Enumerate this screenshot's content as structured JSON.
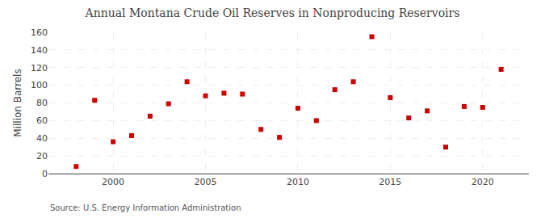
{
  "chart_data": {
    "type": "scatter",
    "title": "Annual Montana Crude Oil Reserves in Nonproducing Reservoirs",
    "ylabel": "Million Barrels",
    "source": "Source: U.S. Energy Information Administration",
    "x": [
      1998,
      1999,
      2000,
      2001,
      2002,
      2003,
      2004,
      2005,
      2006,
      2007,
      2008,
      2009,
      2010,
      2011,
      2012,
      2013,
      2014,
      2015,
      2016,
      2017,
      2018,
      2019,
      2020,
      2021
    ],
    "values": [
      8,
      83,
      36,
      43,
      65,
      79,
      104,
      88,
      91,
      90,
      50,
      41,
      74,
      60,
      95,
      104,
      155,
      86,
      63,
      71,
      30,
      76,
      75,
      118
    ],
    "color": "#cc0000",
    "marker": "square",
    "xlim": [
      1996.5,
      2022.5
    ],
    "xticks": [
      2000,
      2005,
      2010,
      2015,
      2020
    ],
    "ylim": [
      0,
      160
    ],
    "yticks": [
      0,
      20,
      40,
      60,
      80,
      100,
      120,
      140,
      160
    ],
    "grid": true
  }
}
